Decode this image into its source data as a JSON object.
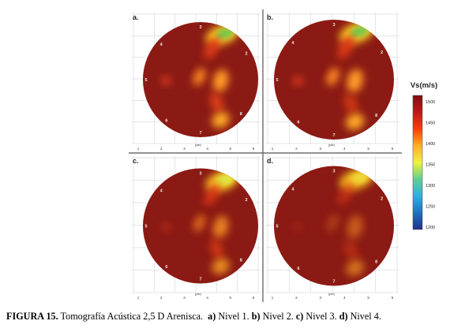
{
  "figure": {
    "panels": [
      {
        "letter": "a.",
        "hotspot_color": "#7cc84a"
      },
      {
        "letter": "b.",
        "hotspot_color": "#7cc84a"
      },
      {
        "letter": "c.",
        "hotspot_color": "#d8e84a"
      },
      {
        "letter": "d.",
        "hotspot_color": "#f0e040"
      }
    ],
    "sensor_labels": [
      "1",
      "2",
      "3",
      "4",
      "5",
      "6",
      "7",
      "8"
    ],
    "axis_ticks": [
      "1",
      "2",
      "3",
      "4",
      "5",
      "6"
    ],
    "axis_unit": "(pie)",
    "colorbar": {
      "title": "Vs(m/s)",
      "ticks": [
        "1500",
        "1450",
        "1400",
        "1350",
        "1300",
        "1250",
        "1200"
      ],
      "colors": [
        "#7a1010",
        "#c01818",
        "#ff3a10",
        "#ffb020",
        "#f0f040",
        "#60d090",
        "#30b0e0",
        "#2070c0",
        "#20308a"
      ]
    },
    "background_color": "#8b1a14"
  },
  "caption": {
    "label": "FIGURA 15.",
    "text": "Tomografía Acústica 2,5 D Arenisca.",
    "items": [
      {
        "key": "a)",
        "text": "Nivel 1."
      },
      {
        "key": "b)",
        "text": "Nivel 2."
      },
      {
        "key": "c)",
        "text": "Nivel 3."
      },
      {
        "key": "d)",
        "text": "Nivel 4."
      }
    ]
  }
}
